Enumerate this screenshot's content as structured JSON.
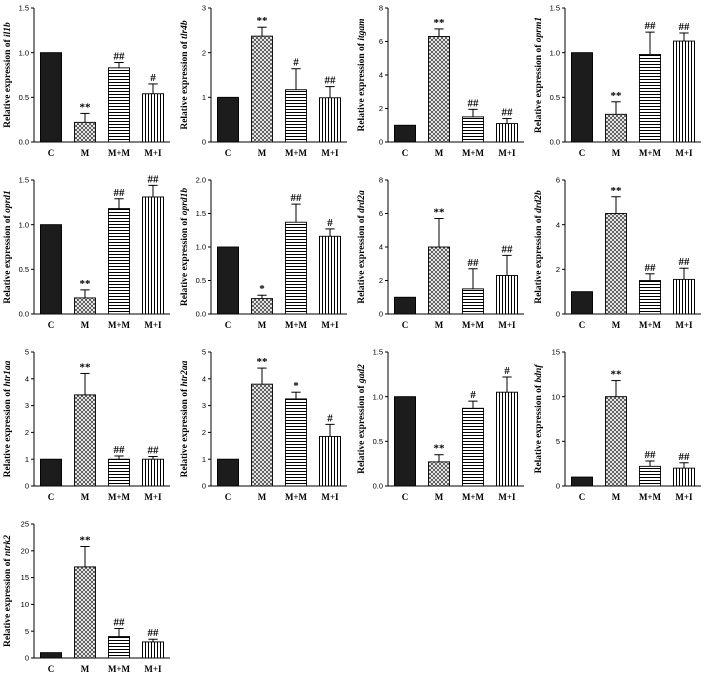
{
  "chart_data": [
    {
      "type": "bar",
      "gene": "il1b",
      "categories": [
        "C",
        "M",
        "M+M",
        "M+I"
      ],
      "values": [
        1.0,
        0.22,
        0.83,
        0.54
      ],
      "errors": [
        0,
        0.1,
        0.06,
        0.11
      ],
      "annotations": [
        "",
        "**",
        "##",
        "#"
      ],
      "ylim": [
        0,
        1.5
      ],
      "yticks": [
        "0.0",
        "0.5",
        "1.0",
        "1.5"
      ],
      "ylabel_prefix": "Relative expression of "
    },
    {
      "type": "bar",
      "gene": "tlr4b",
      "categories": [
        "C",
        "M",
        "M+M",
        "M+I"
      ],
      "values": [
        1.0,
        2.37,
        1.17,
        0.99
      ],
      "errors": [
        0,
        0.2,
        0.47,
        0.25
      ],
      "annotations": [
        "",
        "**",
        "#",
        "##"
      ],
      "ylim": [
        0,
        3
      ],
      "yticks": [
        "0",
        "1",
        "2",
        "3"
      ],
      "ylabel_prefix": "Relative expression of "
    },
    {
      "type": "bar",
      "gene": "itgam",
      "categories": [
        "C",
        "M",
        "M+M",
        "M+I"
      ],
      "values": [
        1.0,
        6.3,
        1.5,
        1.1
      ],
      "errors": [
        0,
        0.45,
        0.45,
        0.3
      ],
      "annotations": [
        "",
        "**",
        "##",
        "##"
      ],
      "ylim": [
        0,
        8
      ],
      "yticks": [
        "0",
        "2",
        "4",
        "6",
        "8"
      ],
      "ylabel_prefix": "Relative expression of "
    },
    {
      "type": "bar",
      "gene": "oprm1",
      "categories": [
        "C",
        "M",
        "M+M",
        "M+I"
      ],
      "values": [
        1.0,
        0.31,
        0.98,
        1.13
      ],
      "errors": [
        0,
        0.14,
        0.25,
        0.09
      ],
      "annotations": [
        "",
        "**",
        "##",
        "##"
      ],
      "ylim": [
        0,
        1.5
      ],
      "yticks": [
        "0.0",
        "0.5",
        "1.0",
        "1.5"
      ],
      "ylabel_prefix": "Relative expression of "
    },
    {
      "type": "bar",
      "gene": "oprd1",
      "categories": [
        "C",
        "M",
        "M+M",
        "M+I"
      ],
      "values": [
        1.0,
        0.18,
        1.18,
        1.31
      ],
      "errors": [
        0,
        0.09,
        0.11,
        0.13
      ],
      "annotations": [
        "",
        "**",
        "##",
        "##"
      ],
      "ylim": [
        0,
        1.5
      ],
      "yticks": [
        "0.0",
        "0.5",
        "1.0",
        "1.5"
      ],
      "ylabel_prefix": "Relative expression of "
    },
    {
      "type": "bar",
      "gene": "oprd1b",
      "categories": [
        "C",
        "M",
        "M+M",
        "M+I"
      ],
      "values": [
        1.0,
        0.23,
        1.37,
        1.16
      ],
      "errors": [
        0,
        0.05,
        0.27,
        0.11
      ],
      "annotations": [
        "",
        "*",
        "##",
        "#"
      ],
      "ylim": [
        0,
        2.0
      ],
      "yticks": [
        "0.0",
        "0.5",
        "1.0",
        "1.5",
        "2.0"
      ],
      "ylabel_prefix": "Relative expression of "
    },
    {
      "type": "bar",
      "gene": "drd2a",
      "categories": [
        "C",
        "M",
        "M+M",
        "M+I"
      ],
      "values": [
        1.0,
        4.0,
        1.5,
        2.3
      ],
      "errors": [
        0,
        1.7,
        1.2,
        1.2
      ],
      "annotations": [
        "",
        "**",
        "##",
        "##"
      ],
      "ylim": [
        0,
        8
      ],
      "yticks": [
        "0",
        "2",
        "4",
        "6",
        "8"
      ],
      "ylabel_prefix": "Relative expression of "
    },
    {
      "type": "bar",
      "gene": "drd2b",
      "categories": [
        "C",
        "M",
        "M+M",
        "M+I"
      ],
      "values": [
        1.0,
        4.5,
        1.5,
        1.55
      ],
      "errors": [
        0,
        0.75,
        0.3,
        0.5
      ],
      "annotations": [
        "",
        "**",
        "##",
        "##"
      ],
      "ylim": [
        0,
        6
      ],
      "yticks": [
        "0",
        "2",
        "4",
        "6"
      ],
      "ylabel_prefix": "Relative expression of "
    },
    {
      "type": "bar",
      "gene": "htr1aa",
      "categories": [
        "C",
        "M",
        "M+M",
        "M+I"
      ],
      "values": [
        1.0,
        3.4,
        1.0,
        1.0
      ],
      "errors": [
        0,
        0.8,
        0.12,
        0.1
      ],
      "annotations": [
        "",
        "**",
        "##",
        "##"
      ],
      "ylim": [
        0,
        5
      ],
      "yticks": [
        "0",
        "1",
        "2",
        "3",
        "4",
        "5"
      ],
      "ylabel_prefix": "Relative expression of "
    },
    {
      "type": "bar",
      "gene": "htr2aa",
      "categories": [
        "C",
        "M",
        "M+M",
        "M+I"
      ],
      "values": [
        1.0,
        3.8,
        3.25,
        1.85
      ],
      "errors": [
        0,
        0.6,
        0.25,
        0.45
      ],
      "annotations": [
        "",
        "**",
        "*",
        "#"
      ],
      "ylim": [
        0,
        5
      ],
      "yticks": [
        "0",
        "1",
        "2",
        "3",
        "4",
        "5"
      ],
      "ylabel_prefix": "Relative expression of "
    },
    {
      "type": "bar",
      "gene": "gad2",
      "categories": [
        "C",
        "M",
        "M+M",
        "M+I"
      ],
      "values": [
        1.0,
        0.27,
        0.87,
        1.05
      ],
      "errors": [
        0,
        0.08,
        0.08,
        0.17
      ],
      "annotations": [
        "",
        "**",
        "#",
        "#"
      ],
      "ylim": [
        0,
        1.5
      ],
      "yticks": [
        "0.0",
        "0.5",
        "1.0",
        "1.5"
      ],
      "ylabel_prefix": "Relative expression of "
    },
    {
      "type": "bar",
      "gene": "bdnf",
      "categories": [
        "C",
        "M",
        "M+M",
        "M+I"
      ],
      "values": [
        1.0,
        10.0,
        2.2,
        2.0
      ],
      "errors": [
        0,
        1.8,
        0.6,
        0.6
      ],
      "annotations": [
        "",
        "**",
        "##",
        "##"
      ],
      "ylim": [
        0,
        15
      ],
      "yticks": [
        "0",
        "5",
        "10",
        "15"
      ],
      "ylabel_prefix": "Relative expression of "
    },
    {
      "type": "bar",
      "gene": "ntrk2",
      "categories": [
        "C",
        "M",
        "M+M",
        "M+I"
      ],
      "values": [
        1.0,
        17.0,
        4.0,
        3.0
      ],
      "errors": [
        0,
        3.8,
        1.5,
        0.5
      ],
      "annotations": [
        "",
        "**",
        "##",
        "##"
      ],
      "ylim": [
        0,
        25
      ],
      "yticks": [
        "0",
        "5",
        "10",
        "15",
        "20",
        "25"
      ],
      "ylabel_prefix": "Relative expression of "
    }
  ],
  "colors": {
    "ink": "#000000",
    "paper": "#ffffff"
  },
  "bar_patterns": [
    "solid-dark",
    "crosshatch",
    "horizontal-lines",
    "vertical-lines"
  ]
}
